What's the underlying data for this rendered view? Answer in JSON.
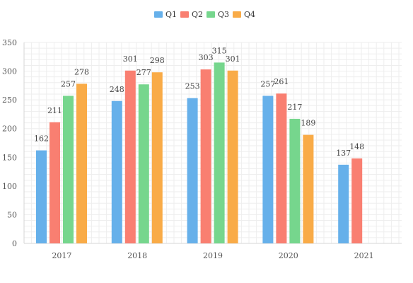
{
  "chart_data": {
    "type": "bar",
    "categories": [
      "2017",
      "2018",
      "2019",
      "2020",
      "2021"
    ],
    "series": [
      {
        "name": "Q1",
        "color": "#66b0ea",
        "values": [
          162,
          248,
          253,
          257,
          137
        ]
      },
      {
        "name": "Q2",
        "color": "#f97f71",
        "values": [
          211,
          301,
          303,
          261,
          148
        ]
      },
      {
        "name": "Q3",
        "color": "#76d68d",
        "values": [
          257,
          277,
          315,
          217,
          null
        ]
      },
      {
        "name": "Q4",
        "color": "#f9ab47",
        "values": [
          278,
          298,
          301,
          189,
          null
        ]
      }
    ],
    "ylim": [
      0,
      350
    ],
    "yticks": [
      0,
      50,
      100,
      150,
      200,
      250,
      300,
      350
    ],
    "minor_gridlines": true,
    "grid": true,
    "legend_position": "top-center",
    "data_labels": true,
    "title": "",
    "xlabel": "",
    "ylabel": ""
  }
}
